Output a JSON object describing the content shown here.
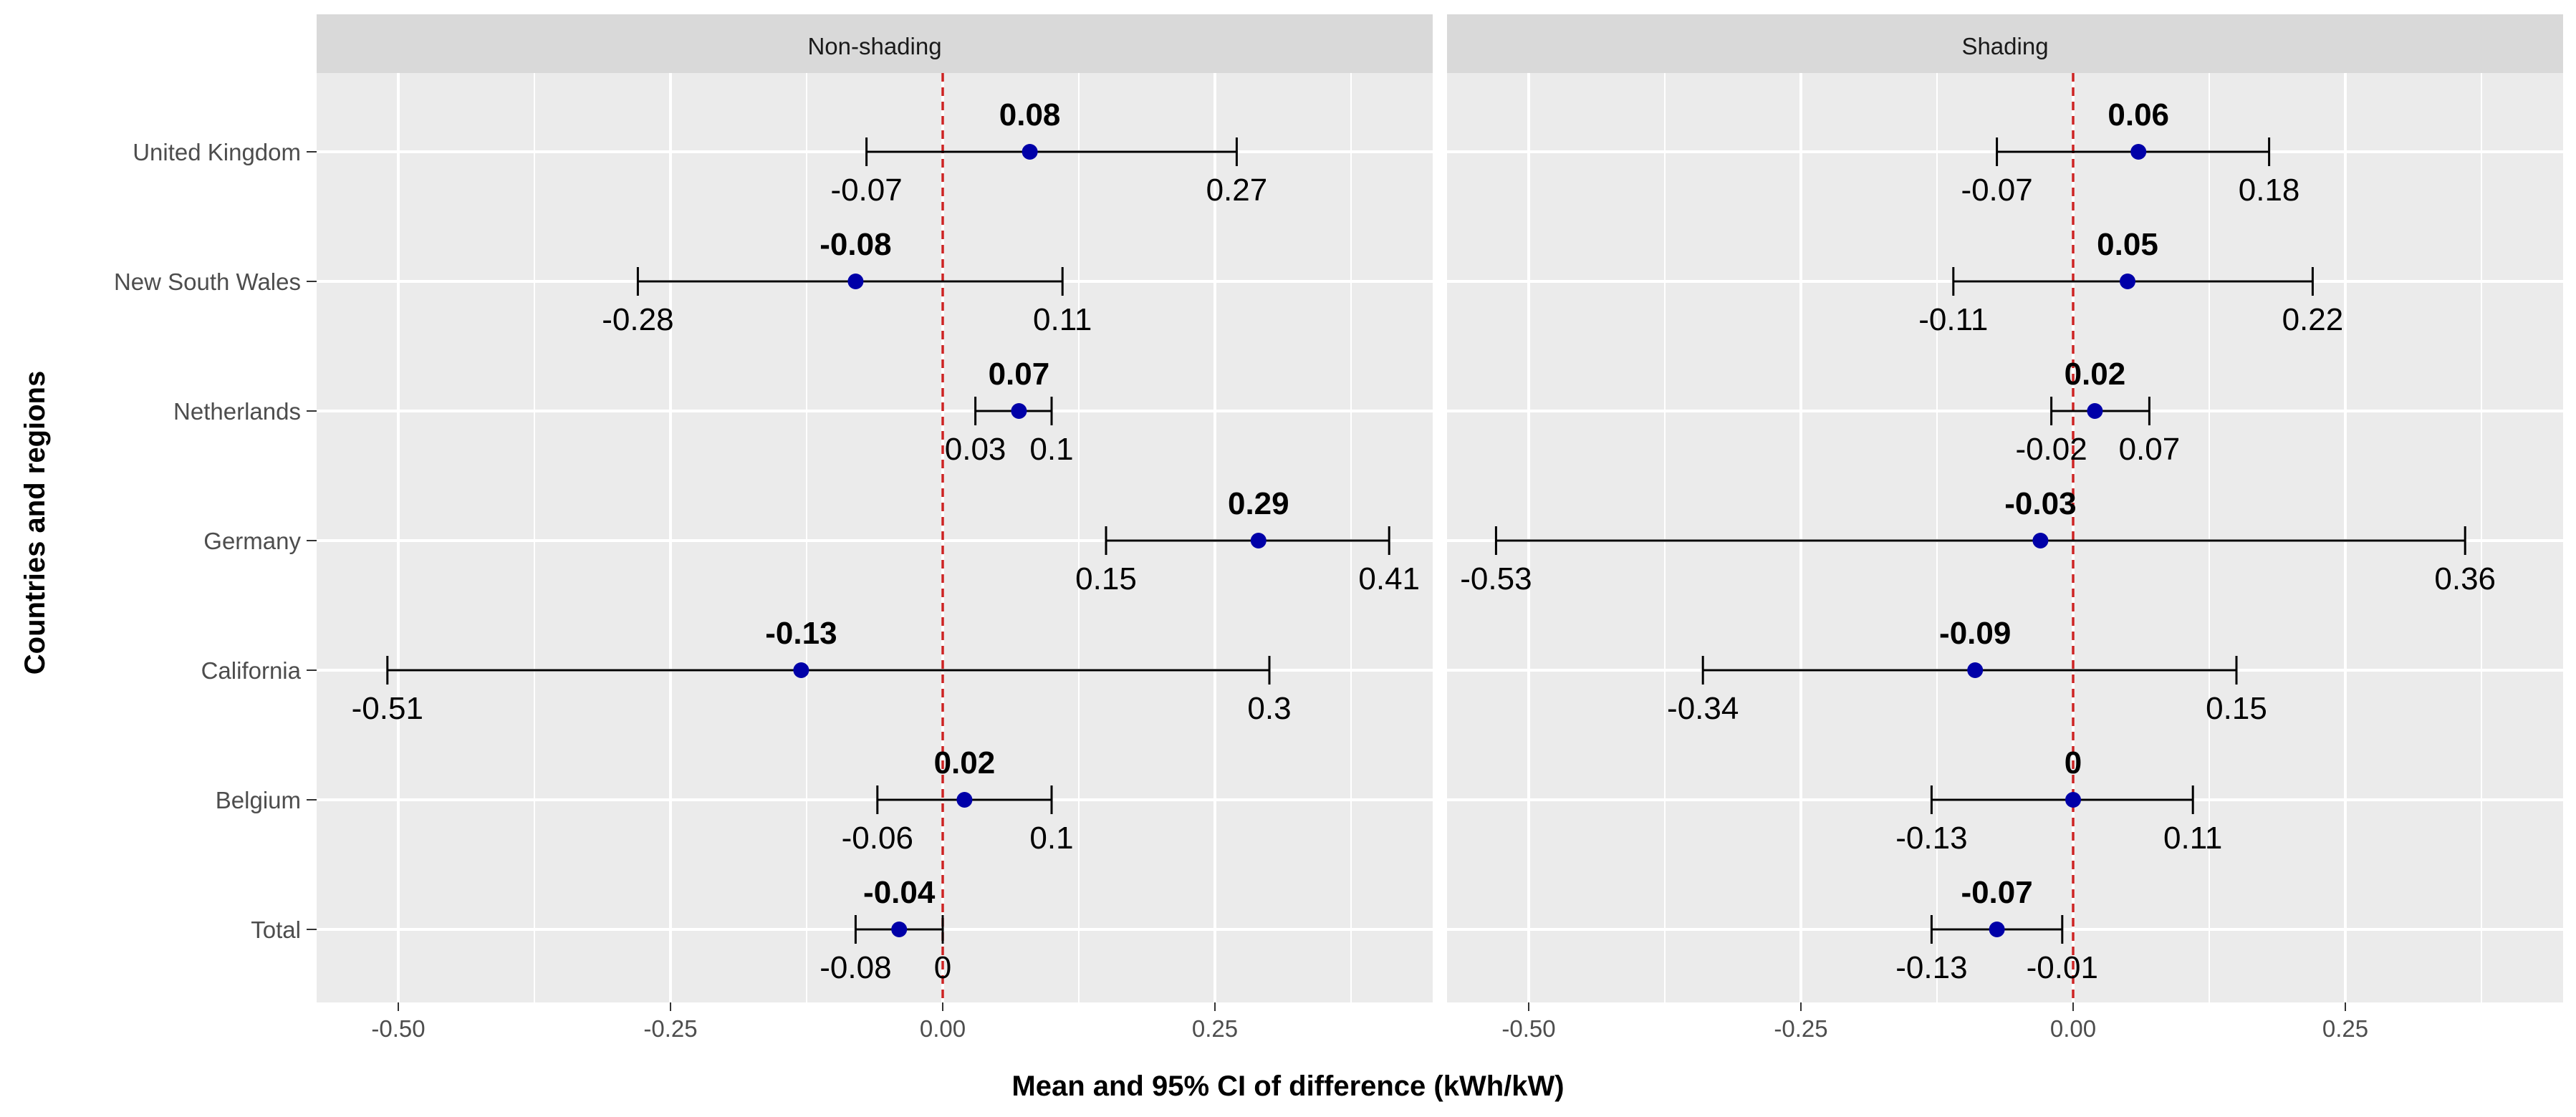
{
  "chart_data": {
    "type": "forest",
    "xlabel": "Mean and 95% CI  of difference (kWh/kW)",
    "ylabel": "Countries and regions",
    "xlim": [
      -0.575,
      0.45
    ],
    "x_ticks": [
      -0.5,
      -0.25,
      0.0,
      0.25
    ],
    "x_tick_labels": [
      "-0.50",
      "-0.25",
      "0.00",
      "0.25"
    ],
    "reference_line": 0,
    "categories": [
      "United Kingdom",
      "New South Wales",
      "Netherlands",
      "Germany",
      "California",
      "Belgium",
      "Total"
    ],
    "colors": {
      "point": "#0000a8",
      "reference": "#cc2222",
      "panel_bg": "#ebebeb",
      "strip_bg": "#d9d9d9",
      "grid": "#ffffff"
    },
    "panels": [
      {
        "title": "Non-shading",
        "rows": [
          {
            "category": "United Kingdom",
            "mean": 0.08,
            "lower": -0.07,
            "upper": 0.27,
            "mean_label": "0.08",
            "lower_label": "-0.07",
            "upper_label": "0.27"
          },
          {
            "category": "New South Wales",
            "mean": -0.08,
            "lower": -0.28,
            "upper": 0.11,
            "mean_label": "-0.08",
            "lower_label": "-0.28",
            "upper_label": "0.11"
          },
          {
            "category": "Netherlands",
            "mean": 0.07,
            "lower": 0.03,
            "upper": 0.1,
            "mean_label": "0.07",
            "lower_label": "0.03",
            "upper_label": "0.1"
          },
          {
            "category": "Germany",
            "mean": 0.29,
            "lower": 0.15,
            "upper": 0.41,
            "mean_label": "0.29",
            "lower_label": "0.15",
            "upper_label": "0.41"
          },
          {
            "category": "California",
            "mean": -0.13,
            "lower": -0.51,
            "upper": 0.3,
            "mean_label": "-0.13",
            "lower_label": "-0.51",
            "upper_label": "0.3"
          },
          {
            "category": "Belgium",
            "mean": 0.02,
            "lower": -0.06,
            "upper": 0.1,
            "mean_label": "0.02",
            "lower_label": "-0.06",
            "upper_label": "0.1"
          },
          {
            "category": "Total",
            "mean": -0.04,
            "lower": -0.08,
            "upper": 0.0,
            "mean_label": "-0.04",
            "lower_label": "-0.08",
            "upper_label": "0"
          }
        ]
      },
      {
        "title": "Shading",
        "rows": [
          {
            "category": "United Kingdom",
            "mean": 0.06,
            "lower": -0.07,
            "upper": 0.18,
            "mean_label": "0.06",
            "lower_label": "-0.07",
            "upper_label": "0.18"
          },
          {
            "category": "New South Wales",
            "mean": 0.05,
            "lower": -0.11,
            "upper": 0.22,
            "mean_label": "0.05",
            "lower_label": "-0.11",
            "upper_label": "0.22"
          },
          {
            "category": "Netherlands",
            "mean": 0.02,
            "lower": -0.02,
            "upper": 0.07,
            "mean_label": "0.02",
            "lower_label": "-0.02",
            "upper_label": "0.07"
          },
          {
            "category": "Germany",
            "mean": -0.03,
            "lower": -0.53,
            "upper": 0.36,
            "mean_label": "-0.03",
            "lower_label": "-0.53",
            "upper_label": "0.36"
          },
          {
            "category": "California",
            "mean": -0.09,
            "lower": -0.34,
            "upper": 0.15,
            "mean_label": "-0.09",
            "lower_label": "-0.34",
            "upper_label": "0.15"
          },
          {
            "category": "Belgium",
            "mean": 0.0,
            "lower": -0.13,
            "upper": 0.11,
            "mean_label": "0",
            "lower_label": "-0.13",
            "upper_label": "0.11"
          },
          {
            "category": "Total",
            "mean": -0.07,
            "lower": -0.13,
            "upper": -0.01,
            "mean_label": "-0.07",
            "lower_label": "-0.13",
            "upper_label": "-0.01"
          }
        ]
      }
    ]
  }
}
